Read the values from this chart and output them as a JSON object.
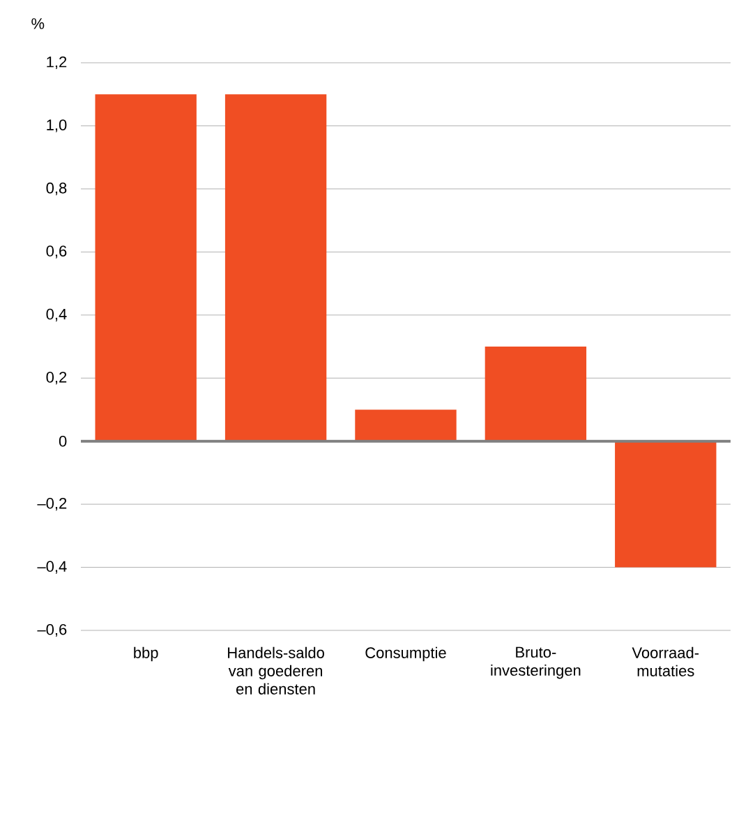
{
  "chart_data": {
    "type": "bar",
    "ylabel": "%",
    "categories": [
      "bbp",
      "Handels-saldo van goederen en diensten",
      "Consumptie",
      "Bruto-investeringen",
      "Voorraad-mutaties"
    ],
    "values": [
      1.1,
      1.1,
      0.1,
      0.3,
      -0.4
    ],
    "color": "#f04e23",
    "ylim": [
      -0.6,
      1.2
    ],
    "yticks": [
      {
        "value": -0.6,
        "label": "–0,6"
      },
      {
        "value": -0.4,
        "label": "–0,4"
      },
      {
        "value": -0.2,
        "label": "–0,2"
      },
      0,
      {
        "value": 0.2,
        "label": "0,2"
      },
      {
        "value": 0.4,
        "label": "0,4"
      },
      {
        "value": 0.6,
        "label": "0,6"
      },
      {
        "value": 0.8,
        "label": "0,8"
      },
      {
        "value": 1.0,
        "label": "1,0"
      },
      {
        "value": 1.2,
        "label": "1,2"
      }
    ],
    "grid": "y"
  }
}
